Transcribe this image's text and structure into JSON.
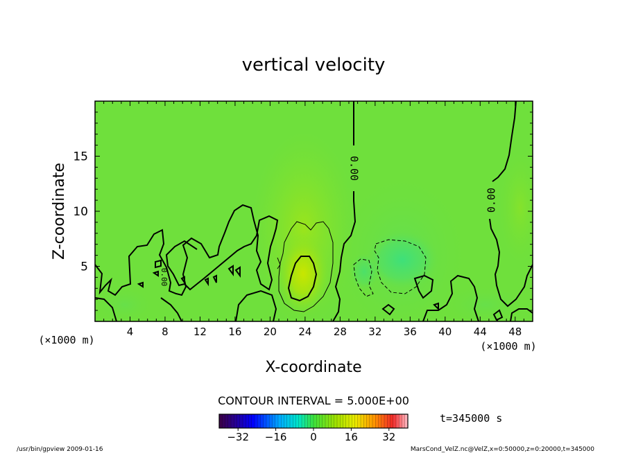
{
  "chart_data": {
    "type": "heatmap",
    "title": "vertical velocity",
    "xlabel": "X-coordinate",
    "ylabel": "Z-coordinate",
    "x_unit": "(×1000 m)",
    "y_unit": "(×1000 m)",
    "xlim": [
      0,
      50
    ],
    "ylim": [
      0,
      20
    ],
    "x_ticks": [
      4,
      8,
      12,
      16,
      20,
      24,
      28,
      32,
      36,
      40,
      44,
      48
    ],
    "y_ticks": [
      5,
      10,
      15
    ],
    "contour_interval": "CONTOUR INTERVAL = 5.000E+00",
    "contour_labels": [
      "0.00",
      "0.00",
      "0.00"
    ],
    "time_label": "t=345000 s",
    "colorbar": {
      "min": -40,
      "max": 40,
      "ticks": [
        -32,
        -16,
        0,
        16,
        32
      ]
    },
    "features": [
      {
        "name": "updraft",
        "x": 23.5,
        "z": 4,
        "value": 12
      },
      {
        "name": "downdraft",
        "x": 34,
        "z": 5,
        "value": -6
      }
    ],
    "grid": false,
    "legend": "none"
  },
  "footer": {
    "left": "/usr/bin/gpview   2009-01-16",
    "right": "MarsCond_VelZ.nc@VelZ,x=0:50000,z=0:20000,t=345000"
  }
}
